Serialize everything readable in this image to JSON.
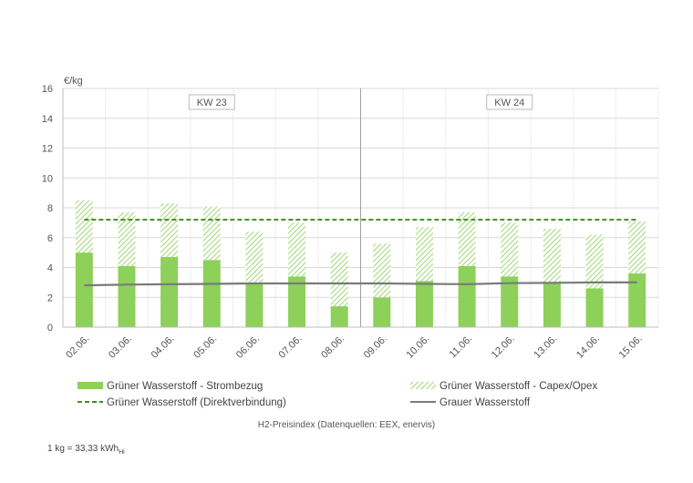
{
  "chart_data": {
    "type": "bar",
    "categories": [
      "02.06.",
      "03.06.",
      "04.06.",
      "05.06.",
      "06.06.",
      "07.06.",
      "08.06.",
      "09.06.",
      "10.06.",
      "11.06.",
      "12.06.",
      "13.06.",
      "14.06.",
      "15.06."
    ],
    "ylabel": "€/kg",
    "ylim": [
      0,
      16
    ],
    "yticks": [
      "0",
      "2",
      "4",
      "6",
      "8",
      "10",
      "12",
      "14",
      "16"
    ],
    "grid": true,
    "stacked": true,
    "week_labels": [
      {
        "label": "KW 23",
        "from": 0,
        "to": 6
      },
      {
        "label": "KW 24",
        "from": 7,
        "to": 13
      }
    ],
    "series": [
      {
        "name": "Grüner Wasserstoff - Strombezug",
        "kind": "bar",
        "color": "#8dd05a",
        "values": [
          5.0,
          4.1,
          4.7,
          4.5,
          2.9,
          3.4,
          1.4,
          2.0,
          3.1,
          4.1,
          3.4,
          3.0,
          2.6,
          3.6
        ]
      },
      {
        "name": "Grüner Wasserstoff - Capex/Opex",
        "kind": "bar-hatched",
        "color": "#a6d880",
        "values": [
          3.5,
          3.6,
          3.6,
          3.6,
          3.5,
          3.6,
          3.6,
          3.6,
          3.6,
          3.6,
          3.6,
          3.6,
          3.6,
          3.5
        ]
      },
      {
        "name": "Grüner Wasserstoff (Direktverbindung)",
        "kind": "dashed-line",
        "color": "#3e8f1f",
        "values": [
          7.2,
          7.2,
          7.2,
          7.2,
          7.2,
          7.2,
          7.2,
          7.2,
          7.2,
          7.2,
          7.2,
          7.2,
          7.2,
          7.2
        ]
      },
      {
        "name": "Grauer Wasserstoff",
        "kind": "line",
        "color": "#7a7a7a",
        "values": [
          2.8,
          2.85,
          2.88,
          2.9,
          2.93,
          2.93,
          2.93,
          2.93,
          2.9,
          2.88,
          2.95,
          2.97,
          3.0,
          3.0
        ]
      }
    ],
    "caption": "H2-Preisindex (Datenquellen: EEX, enervis)",
    "footnote": "1 kg = 33,33 kWh",
    "footnote_sub": "Hi"
  }
}
